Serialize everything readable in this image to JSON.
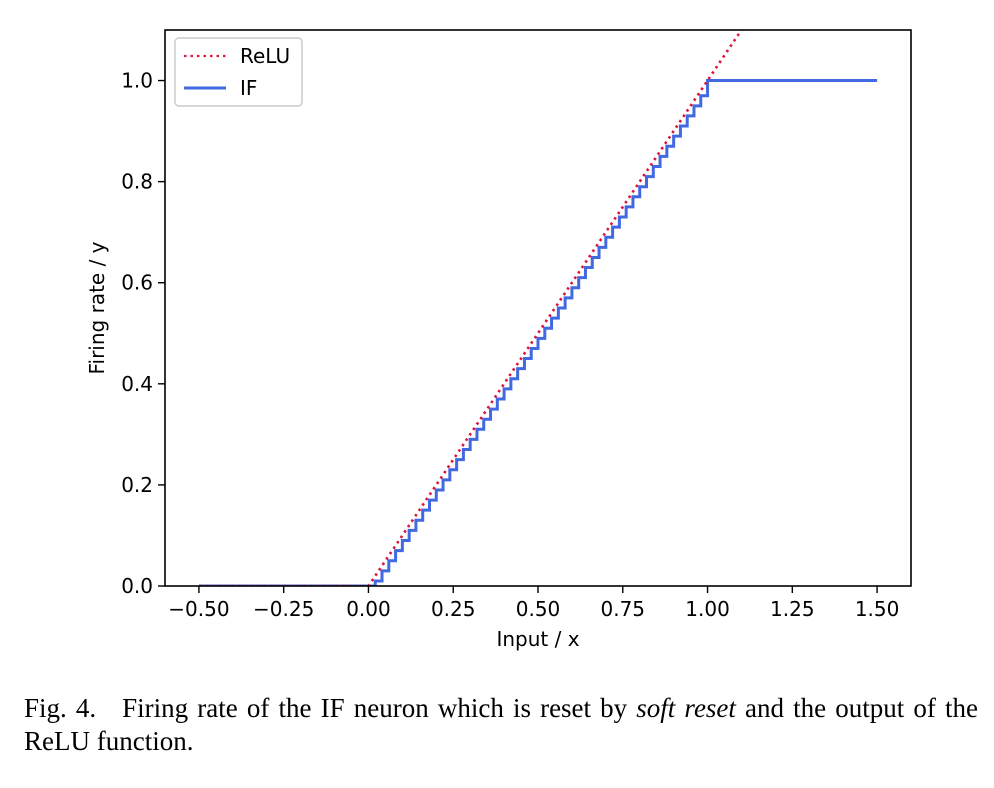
{
  "chart_data": {
    "type": "line",
    "xlabel": "Input / x",
    "ylabel": "Firing rate / y",
    "xlim": [
      -0.6,
      1.6
    ],
    "ylim": [
      0,
      1.1
    ],
    "xticks": [
      -0.5,
      -0.25,
      0.0,
      0.25,
      0.5,
      0.75,
      1.0,
      1.25,
      1.5
    ],
    "xtick_labels": [
      "−0.50",
      "−0.25",
      "0.00",
      "0.25",
      "0.50",
      "0.75",
      "1.00",
      "1.25",
      "1.50"
    ],
    "yticks": [
      0.0,
      0.2,
      0.4,
      0.6,
      0.8,
      1.0
    ],
    "ytick_labels": [
      "0.0",
      "0.2",
      "0.4",
      "0.6",
      "0.8",
      "1.0"
    ],
    "grid": false,
    "legend": {
      "placement": "top-left"
    },
    "series": [
      {
        "name": "ReLU",
        "color": "#dc143c",
        "style": "dotted",
        "x": [
          -0.5,
          0.0,
          1.1
        ],
        "y": [
          0.0,
          0.0,
          1.1
        ]
      },
      {
        "name": "IF",
        "color": "#4169e1",
        "style": "solid",
        "x": [
          -0.5,
          0.0,
          0.02,
          0.04,
          0.06,
          0.08,
          0.1,
          0.12,
          0.14,
          0.16,
          0.18,
          0.2,
          0.22,
          0.24,
          0.26,
          0.28,
          0.3,
          0.32,
          0.34,
          0.36,
          0.38,
          0.4,
          0.42,
          0.44,
          0.46,
          0.48,
          0.5,
          0.52,
          0.54,
          0.56,
          0.58,
          0.6,
          0.62,
          0.64,
          0.66,
          0.68,
          0.7,
          0.72,
          0.74,
          0.76,
          0.78,
          0.8,
          0.82,
          0.84,
          0.86,
          0.88,
          0.9,
          0.92,
          0.94,
          0.96,
          0.98,
          1.0,
          1.5
        ],
        "y": [
          0.0,
          0.0,
          0.01,
          0.03,
          0.05,
          0.07,
          0.09,
          0.11,
          0.13,
          0.15,
          0.17,
          0.19,
          0.21,
          0.23,
          0.25,
          0.27,
          0.29,
          0.31,
          0.33,
          0.35,
          0.37,
          0.39,
          0.41,
          0.43,
          0.45,
          0.47,
          0.49,
          0.51,
          0.53,
          0.55,
          0.57,
          0.59,
          0.61,
          0.63,
          0.65,
          0.67,
          0.69,
          0.71,
          0.73,
          0.75,
          0.77,
          0.79,
          0.81,
          0.83,
          0.85,
          0.87,
          0.89,
          0.91,
          0.93,
          0.95,
          0.97,
          1.0,
          1.0
        ]
      }
    ]
  },
  "caption": {
    "label": "Fig. 4.",
    "text_before": "Firing rate of the IF neuron which is reset by ",
    "emphasis": "soft reset",
    "text_after": " and the output of the ReLU function."
  }
}
